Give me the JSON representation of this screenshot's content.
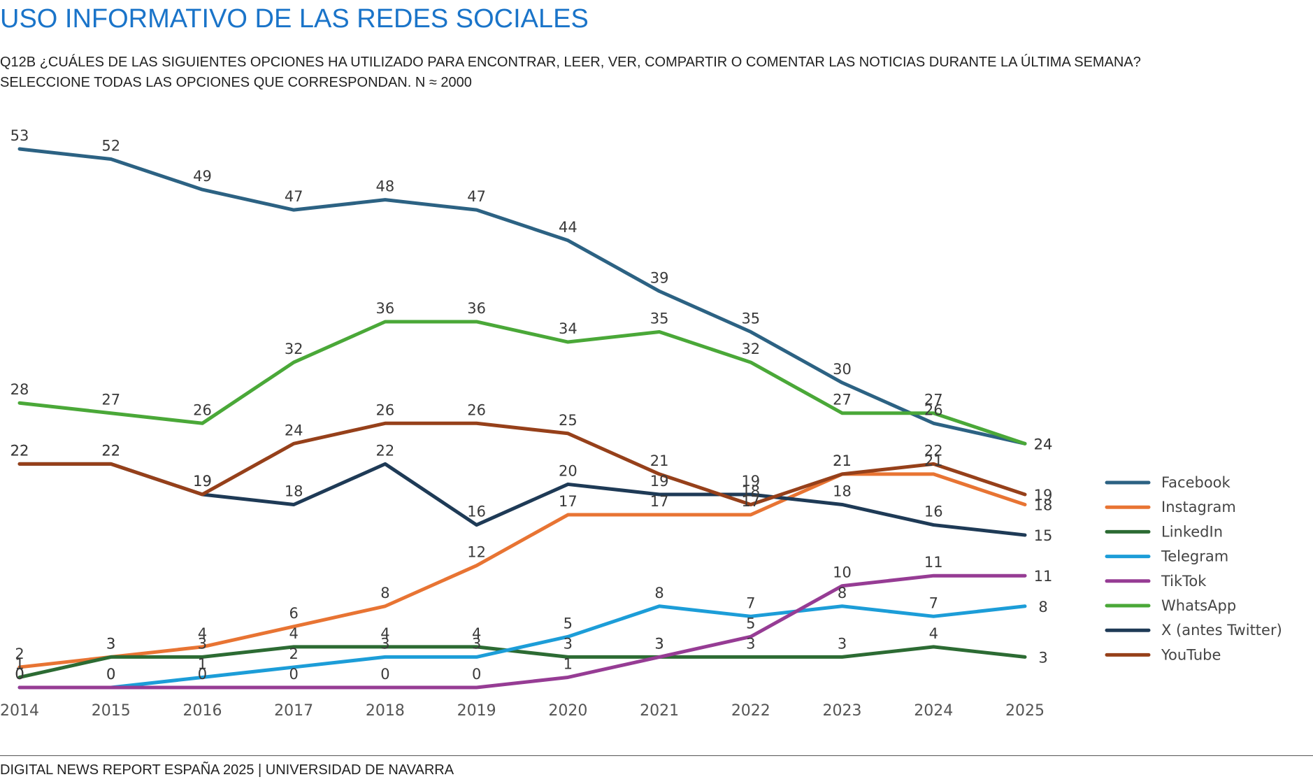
{
  "chart_data": {
    "type": "line",
    "title": "USO INFORMATIVO DE LAS REDES SOCIALES",
    "subtitle_line1": "Q12B ¿CUÁLES DE LAS SIGUIENTES OPCIONES HA UTILIZADO PARA ENCONTRAR, LEER, VER, COMPARTIR O COMENTAR LAS NOTICIAS DURANTE LA ÚLTIMA SEMANA?",
    "subtitle_line2": "SELECCIONE TODAS LAS OPCIONES QUE CORRESPONDAN. N ≈ 2000",
    "x": [
      "2014",
      "2015",
      "2016",
      "2017",
      "2018",
      "2019",
      "2020",
      "2021",
      "2022",
      "2023",
      "2024",
      "2025"
    ],
    "ylim": [
      0,
      53
    ],
    "grid": false,
    "legend_position": "right",
    "series": [
      {
        "name": "Facebook",
        "color": "#2c6283",
        "values": [
          53,
          52,
          49,
          47,
          48,
          47,
          44,
          39,
          35,
          30,
          26,
          24
        ]
      },
      {
        "name": "Instagram",
        "color": "#e87433",
        "values": [
          2,
          3,
          4,
          6,
          8,
          12,
          17,
          17,
          17,
          21,
          21,
          18
        ]
      },
      {
        "name": "LinkedIn",
        "color": "#2c6b33",
        "values": [
          1,
          3,
          3,
          4,
          4,
          4,
          3,
          3,
          3,
          3,
          4,
          3
        ]
      },
      {
        "name": "Telegram",
        "color": "#1c9dd8",
        "values": [
          0,
          0,
          1,
          2,
          3,
          3,
          5,
          8,
          7,
          8,
          7,
          8
        ]
      },
      {
        "name": "TikTok",
        "color": "#963c94",
        "values": [
          0,
          0,
          0,
          0,
          0,
          0,
          1,
          3,
          5,
          10,
          11,
          11
        ]
      },
      {
        "name": "WhatsApp",
        "color": "#4aa838",
        "values": [
          28,
          27,
          26,
          32,
          36,
          36,
          34,
          35,
          32,
          27,
          27,
          24
        ]
      },
      {
        "name": "X (antes Twitter)",
        "color": "#1e3a56",
        "values": [
          22,
          22,
          19,
          18,
          22,
          16,
          20,
          19,
          19,
          18,
          16,
          15
        ]
      },
      {
        "name": "YouTube",
        "color": "#96401a",
        "values": [
          22,
          22,
          19,
          24,
          26,
          26,
          25,
          21,
          18,
          21,
          22,
          19
        ]
      }
    ]
  },
  "footer": "DIGITAL NEWS REPORT ESPAÑA 2025 | UNIVERSIDAD DE NAVARRA"
}
